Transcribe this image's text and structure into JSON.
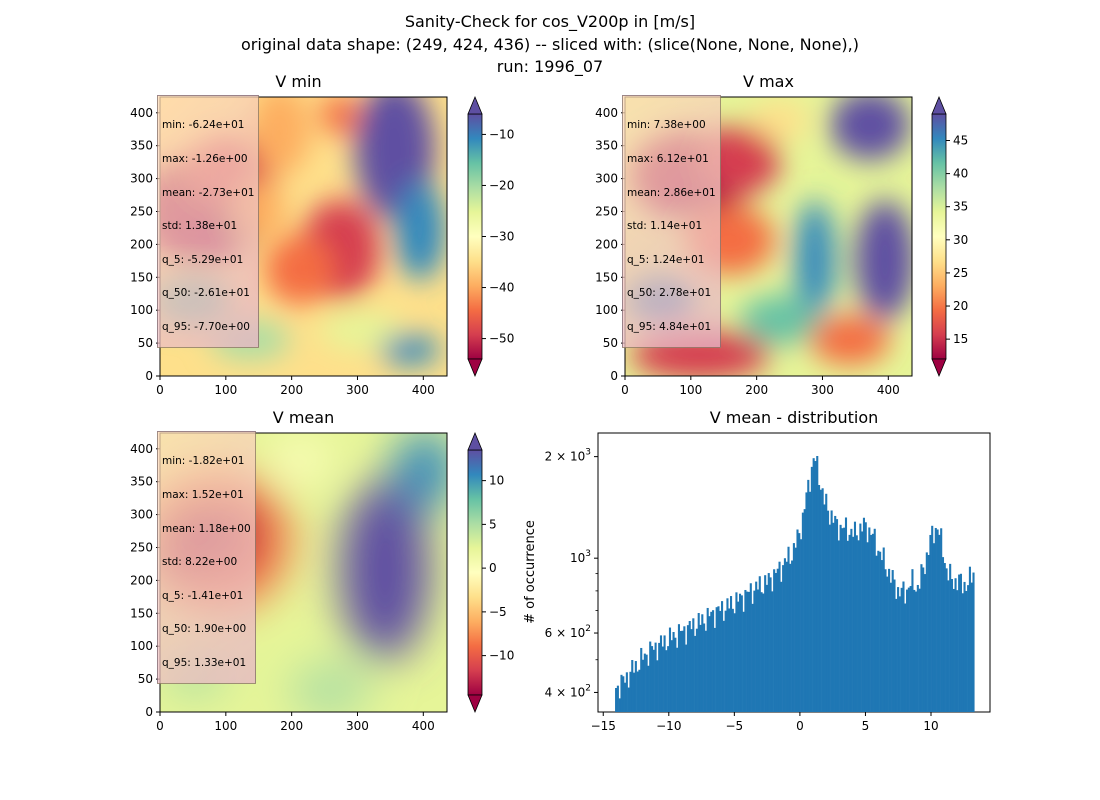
{
  "figure": {
    "title_lines": [
      "Sanity-Check for cos_V200p in [m/s]",
      "original data shape: (249, 424, 436) -- sliced with: (slice(None, None, None),)",
      "run: 1996_07"
    ]
  },
  "colors": {
    "spectral_r": [
      "#9e0142",
      "#d53e4f",
      "#f46d43",
      "#fdae61",
      "#fee08b",
      "#ffffbf",
      "#e6f598",
      "#abdda4",
      "#66c2a5",
      "#3288bd",
      "#5e4fa2"
    ],
    "hist_bar": "#1f77b4"
  },
  "chart_data": [
    {
      "type": "heatmap",
      "title": "V min",
      "xlim": [
        0,
        436
      ],
      "ylim": [
        0,
        424
      ],
      "xticks": [
        0,
        100,
        200,
        300,
        400
      ],
      "yticks": [
        0,
        50,
        100,
        150,
        200,
        250,
        300,
        350,
        400
      ],
      "colorbar": {
        "range": [
          -54,
          -6
        ],
        "ticks": [
          -50,
          -40,
          -30,
          -20,
          -10
        ],
        "extend": "both",
        "cmap": "Spectral"
      },
      "stats": [
        "min: -6.24e+01",
        "max: -1.26e+00",
        "mean: -2.73e+01",
        "std: 1.38e+01",
        "q_5: -5.29e+01",
        "q_50: -2.61e+01",
        "q_95: -7.70e+00"
      ]
    },
    {
      "type": "heatmap",
      "title": "V max",
      "xlim": [
        0,
        436
      ],
      "ylim": [
        0,
        424
      ],
      "xticks": [
        0,
        100,
        200,
        300,
        400
      ],
      "yticks": [
        0,
        50,
        100,
        150,
        200,
        250,
        300,
        350,
        400
      ],
      "colorbar": {
        "range": [
          12,
          49
        ],
        "ticks": [
          15,
          20,
          25,
          30,
          35,
          40,
          45
        ],
        "extend": "both",
        "cmap": "Spectral"
      },
      "stats": [
        "min: 7.38e+00",
        "max: 6.12e+01",
        "mean: 2.86e+01",
        "std: 1.14e+01",
        "q_5: 1.24e+01",
        "q_50: 2.78e+01",
        "q_95: 4.84e+01"
      ]
    },
    {
      "type": "heatmap",
      "title": "V mean",
      "xlim": [
        0,
        436
      ],
      "ylim": [
        0,
        424
      ],
      "xticks": [
        0,
        100,
        200,
        300,
        400
      ],
      "yticks": [
        0,
        50,
        100,
        150,
        200,
        250,
        300,
        350,
        400
      ],
      "colorbar": {
        "range": [
          -14.5,
          13.5
        ],
        "ticks": [
          -10,
          -5,
          0,
          5,
          10
        ],
        "extend": "both",
        "cmap": "Spectral"
      },
      "stats": [
        "min: -1.82e+01",
        "max: 1.52e+01",
        "mean: 1.18e+00",
        "std: 8.22e+00",
        "q_5: -1.41e+01",
        "q_50: 1.90e+00",
        "q_95: 1.33e+01"
      ]
    },
    {
      "type": "bar",
      "title": "V mean - distribution",
      "ylabel": "# of occurrence",
      "yscale": "log",
      "xlim": [
        -15.4,
        14.5
      ],
      "ylim": [
        350,
        2350
      ],
      "xticks": [
        -15,
        -10,
        -5,
        0,
        5,
        10
      ],
      "yticks": [
        {
          "value": 400,
          "label_base": "4",
          "label_exp": "2"
        },
        {
          "value": 600,
          "label_base": "6",
          "label_exp": "2"
        },
        {
          "value": 1000,
          "label_base": "",
          "label_exp": "3"
        },
        {
          "value": 2000,
          "label_base": "2",
          "label_exp": "3"
        }
      ],
      "bin_start": -14.1,
      "bin_width": 0.137,
      "anchors": [
        [
          -14.1,
          410
        ],
        [
          -13.5,
          430
        ],
        [
          -12.5,
          480
        ],
        [
          -11.5,
          530
        ],
        [
          -10.5,
          560
        ],
        [
          -9.5,
          590
        ],
        [
          -8.5,
          620
        ],
        [
          -7.5,
          650
        ],
        [
          -6.5,
          690
        ],
        [
          -5.5,
          720
        ],
        [
          -4.5,
          760
        ],
        [
          -3.5,
          810
        ],
        [
          -2.5,
          850
        ],
        [
          -1.5,
          930
        ],
        [
          -0.5,
          1050
        ],
        [
          -0.1,
          1170
        ],
        [
          0.2,
          1300
        ],
        [
          0.6,
          1600
        ],
        [
          0.9,
          1850
        ],
        [
          1.1,
          2000
        ],
        [
          1.4,
          1800
        ],
        [
          1.8,
          1500
        ],
        [
          2.2,
          1380
        ],
        [
          2.8,
          1250
        ],
        [
          3.5,
          1220
        ],
        [
          4.2,
          1180
        ],
        [
          4.8,
          1250
        ],
        [
          5.4,
          1200
        ],
        [
          6.0,
          1060
        ],
        [
          6.5,
          960
        ],
        [
          7.0,
          870
        ],
        [
          7.5,
          800
        ],
        [
          8.0,
          790
        ],
        [
          8.5,
          850
        ],
        [
          9.0,
          820
        ],
        [
          9.5,
          950
        ],
        [
          10.0,
          1150
        ],
        [
          10.5,
          1250
        ],
        [
          10.8,
          1100
        ],
        [
          11.2,
          920
        ],
        [
          11.6,
          860
        ],
        [
          12.2,
          850
        ],
        [
          12.8,
          830
        ],
        [
          13.3,
          930
        ]
      ]
    }
  ]
}
